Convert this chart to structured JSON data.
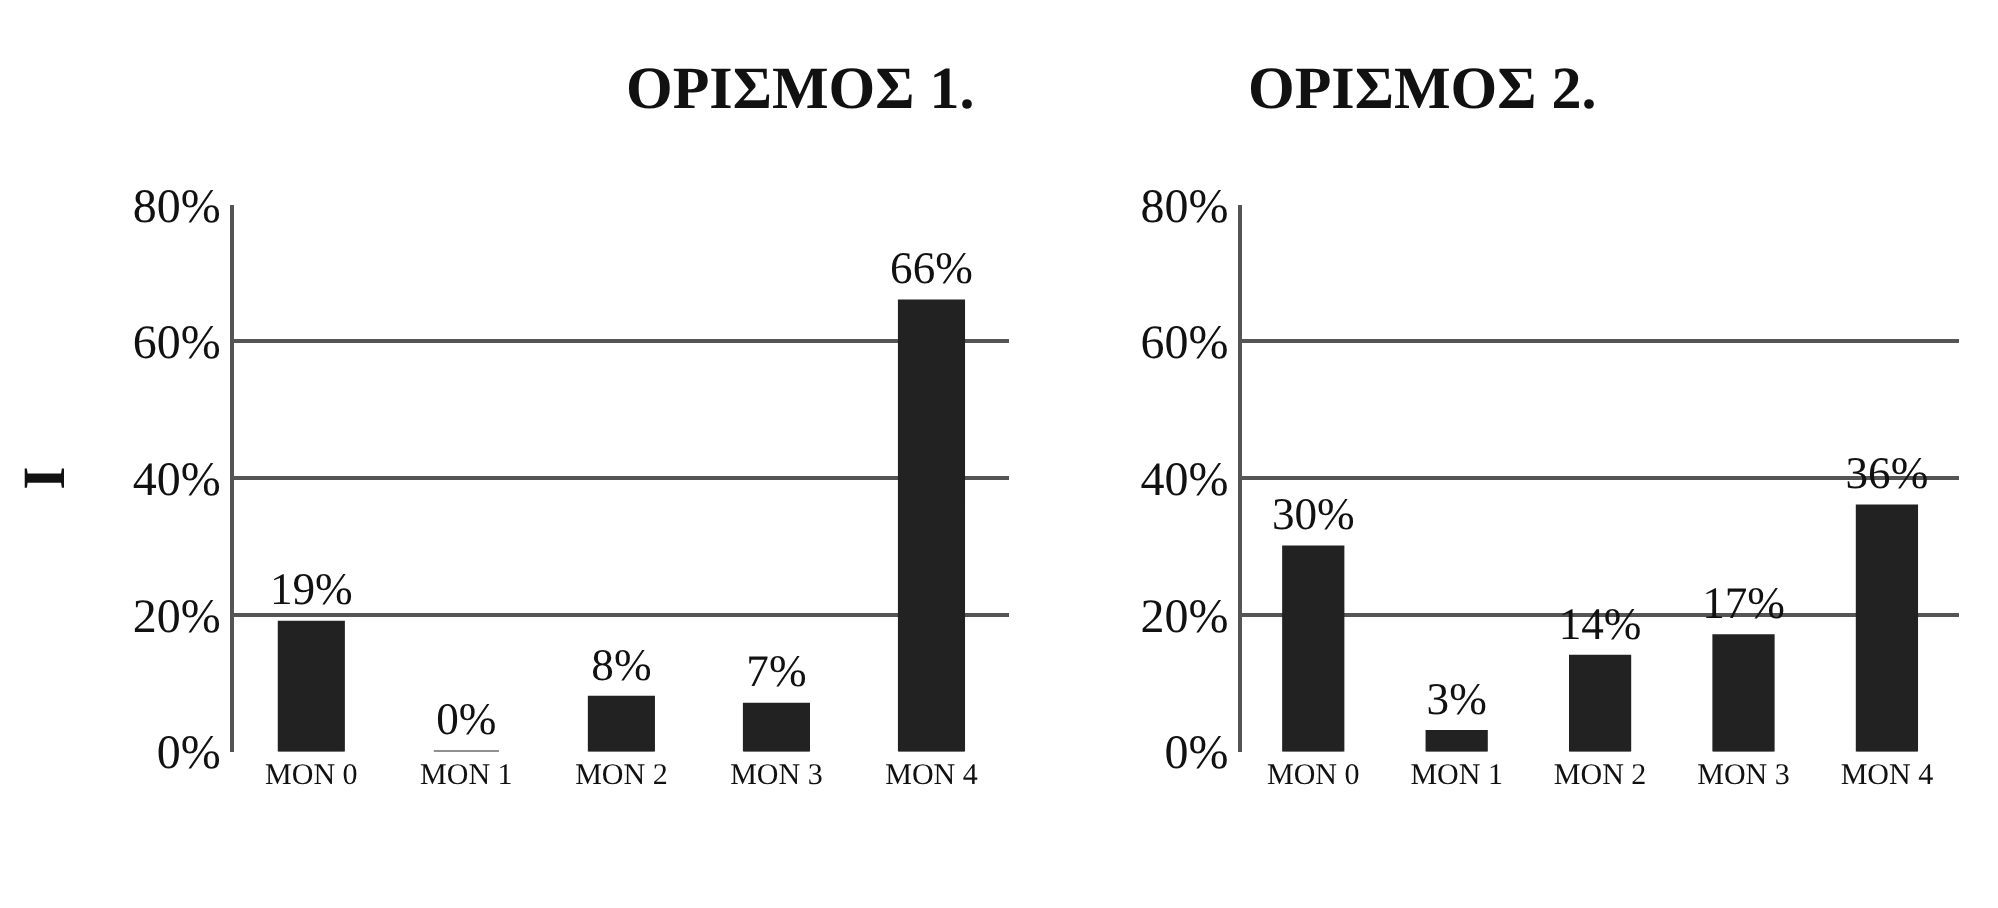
{
  "chart_data": [
    {
      "type": "bar",
      "title": "ΟΡΙΣΜΟΣ 1.",
      "ylabel": "I",
      "categories": [
        "MON 0",
        "MON 1",
        "MON 2",
        "MON 3",
        "MON 4"
      ],
      "values": [
        19,
        0,
        8,
        7,
        66
      ],
      "value_labels": [
        "19%",
        "0%",
        "8%",
        "7%",
        "66%"
      ],
      "color": "#222222",
      "ylim": [
        0,
        80
      ],
      "yticks": [
        {
          "value": 0,
          "label": "0%"
        },
        {
          "value": 20,
          "label": "20%"
        },
        {
          "value": 40,
          "label": "40%"
        },
        {
          "value": 60,
          "label": "60%"
        },
        {
          "value": 80,
          "label": "80%"
        }
      ],
      "grid": "y"
    },
    {
      "type": "bar",
      "title": "ΟΡΙΣΜΟΣ 2.",
      "categories": [
        "MON 0",
        "MON 1",
        "MON 2",
        "MON 3",
        "MON 4"
      ],
      "values": [
        30,
        3,
        14,
        17,
        36
      ],
      "value_labels": [
        "30%",
        "3%",
        "14%",
        "17%",
        "36%"
      ],
      "color": "#222222",
      "ylim": [
        0,
        80
      ],
      "yticks": [
        {
          "value": 0,
          "label": "0%"
        },
        {
          "value": 20,
          "label": "20%"
        },
        {
          "value": 40,
          "label": "40%"
        },
        {
          "value": 60,
          "label": "60%"
        },
        {
          "value": 80,
          "label": "80%"
        }
      ],
      "grid": "y"
    }
  ]
}
